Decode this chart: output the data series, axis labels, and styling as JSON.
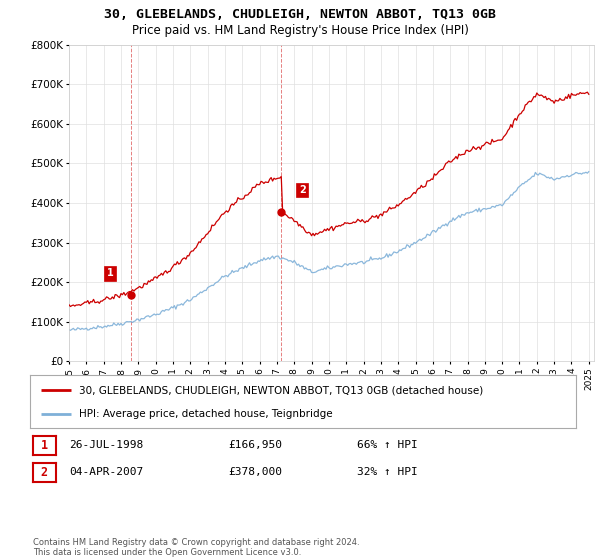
{
  "title_line1": "30, GLEBELANDS, CHUDLEIGH, NEWTON ABBOT, TQ13 0GB",
  "title_line2": "Price paid vs. HM Land Registry's House Price Index (HPI)",
  "ylim": [
    0,
    800000
  ],
  "yticks": [
    0,
    100000,
    200000,
    300000,
    400000,
    500000,
    600000,
    700000,
    800000
  ],
  "ytick_labels": [
    "£0",
    "£100K",
    "£200K",
    "£300K",
    "£400K",
    "£500K",
    "£600K",
    "£700K",
    "£800K"
  ],
  "sale1_year": 1998.57,
  "sale1_price": 166950,
  "sale2_year": 2007.26,
  "sale2_price": 378000,
  "line_color_red": "#cc0000",
  "line_color_blue": "#7fb0d8",
  "background_color": "#ffffff",
  "grid_color": "#e0e0e0",
  "legend_line1": "30, GLEBELANDS, CHUDLEIGH, NEWTON ABBOT, TQ13 0GB (detached house)",
  "legend_line2": "HPI: Average price, detached house, Teignbridge",
  "table_row1_num": "1",
  "table_row1_date": "26-JUL-1998",
  "table_row1_price": "£166,950",
  "table_row1_hpi": "66% ↑ HPI",
  "table_row2_num": "2",
  "table_row2_date": "04-APR-2007",
  "table_row2_price": "£378,000",
  "table_row2_hpi": "32% ↑ HPI",
  "footer": "Contains HM Land Registry data © Crown copyright and database right 2024.\nThis data is licensed under the Open Government Licence v3.0.",
  "hpi_anchors_x": [
    1995,
    1996,
    1997,
    1998,
    1999,
    2000,
    2001,
    2002,
    2003,
    2004,
    2005,
    2006,
    2007,
    2008,
    2009,
    2010,
    2011,
    2012,
    2013,
    2014,
    2015,
    2016,
    2017,
    2018,
    2019,
    2020,
    2021,
    2022,
    2023,
    2024,
    2025
  ],
  "hpi_anchors_y": [
    78000,
    83000,
    88000,
    95000,
    105000,
    118000,
    135000,
    155000,
    185000,
    215000,
    235000,
    255000,
    265000,
    250000,
    225000,
    235000,
    245000,
    250000,
    260000,
    278000,
    300000,
    325000,
    355000,
    375000,
    385000,
    395000,
    440000,
    475000,
    460000,
    472000,
    478000
  ],
  "red_anchors_x": [
    1995,
    1996,
    1997,
    1998,
    1999,
    2000,
    2001,
    2002,
    2003,
    2004,
    2005,
    2006,
    2007.26,
    2007.27,
    2008,
    2009,
    2010,
    2011,
    2012,
    2013,
    2014,
    2015,
    2016,
    2017,
    2018,
    2019,
    2020,
    2021,
    2022,
    2023,
    2024,
    2025
  ],
  "red_anchors_y": [
    138000,
    146000,
    155000,
    166950,
    185000,
    208000,
    238000,
    273000,
    325000,
    378000,
    413000,
    449000,
    467000,
    378000,
    356000,
    320000,
    334000,
    348000,
    355000,
    370000,
    395000,
    427000,
    463000,
    505000,
    533000,
    547000,
    562000,
    626000,
    676000,
    656000,
    672000,
    680000
  ]
}
